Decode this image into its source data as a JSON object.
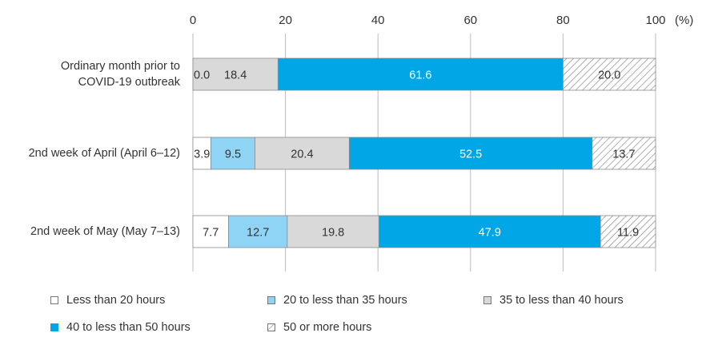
{
  "chart_data": {
    "type": "bar",
    "orientation": "horizontal",
    "stacked": true,
    "unit_label": "(%)",
    "xlim": [
      0,
      100
    ],
    "x_ticks": [
      0,
      20,
      40,
      60,
      80,
      100
    ],
    "grid": true,
    "legend_position": "bottom",
    "categories": [
      [
        "Ordinary month prior to",
        "COVID-19 outbreak"
      ],
      [
        "2nd week of April (April 6–12)"
      ],
      [
        "2nd week of May (May 7–13)"
      ]
    ],
    "series": [
      {
        "name": "Less than 20 hours",
        "color": "#ffffff",
        "text_color": "#333333",
        "pattern": "none",
        "values": [
          0.0,
          3.9,
          7.7
        ],
        "labels": [
          "0.0",
          "3.9",
          "7.7"
        ]
      },
      {
        "name": "20 to less than 35 hours",
        "color": "#8fd3f5",
        "text_color": "#333333",
        "pattern": "none",
        "values": [
          0.0,
          9.5,
          12.7
        ],
        "labels": [
          "",
          "9.5",
          "12.7"
        ]
      },
      {
        "name": "35 to less than 40 hours",
        "color": "#d9d9d9",
        "text_color": "#333333",
        "pattern": "none",
        "values": [
          18.4,
          20.4,
          19.8
        ],
        "labels": [
          "18.4",
          "20.4",
          "19.8"
        ]
      },
      {
        "name": "40 to less than 50 hours",
        "color": "#00a6e6",
        "text_color": "#ffffff",
        "pattern": "none",
        "values": [
          61.6,
          52.5,
          47.9
        ],
        "labels": [
          "61.6",
          "52.5",
          "47.9"
        ]
      },
      {
        "name": "50 or more hours",
        "color": "#ffffff",
        "text_color": "#333333",
        "pattern": "hatch",
        "values": [
          20.0,
          13.7,
          11.9
        ],
        "labels": [
          "20.0",
          "13.7",
          "11.9"
        ]
      }
    ]
  },
  "legend": {
    "items": [
      {
        "label": "Less than 20 hours",
        "color": "#ffffff",
        "pattern": "none"
      },
      {
        "label": "20 to less than 35 hours",
        "color": "#8fd3f5",
        "pattern": "none"
      },
      {
        "label": "35 to less than 40 hours",
        "color": "#d9d9d9",
        "pattern": "none"
      },
      {
        "label": "40 to less than 50 hours",
        "color": "#00a6e6",
        "pattern": "none"
      },
      {
        "label": "50 or more hours",
        "color": "#ffffff",
        "pattern": "hatch"
      }
    ]
  }
}
